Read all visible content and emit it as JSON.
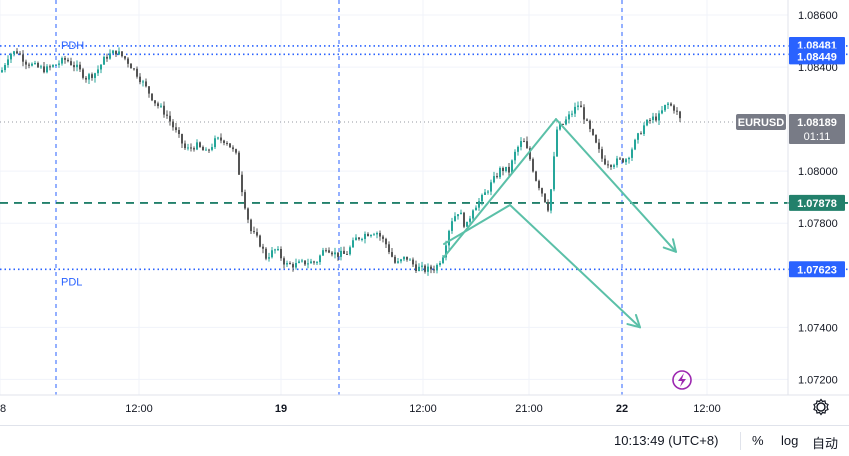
{
  "chart_data": {
    "type": "candlestick",
    "symbol": "EURUSD",
    "last_price": "1.08189",
    "countdown": "01:11",
    "price_ticks": [
      "1.08600",
      "1.08400",
      "1.08000",
      "1.07800",
      "1.07400",
      "1.07200"
    ],
    "time_ticks": [
      "8",
      "12:00",
      "19",
      "12:00",
      "21:00",
      "22",
      "12:00"
    ],
    "levels": [
      {
        "label": "PDH",
        "value": "1.08481",
        "color": "#2962ff",
        "style": "dotted"
      },
      {
        "label": "",
        "value": "1.08449",
        "color": "#2962ff",
        "style": "dotted"
      },
      {
        "label": "",
        "value": "1.07878",
        "color": "#22806b",
        "style": "dashed"
      },
      {
        "label": "PDL",
        "value": "1.07623",
        "color": "#2962ff",
        "style": "dotted"
      }
    ],
    "ylim": [
      1.0714,
      1.0865
    ],
    "path": [
      [
        0,
        1.0838
      ],
      [
        8,
        1.0845
      ],
      [
        16,
        1.0846
      ],
      [
        25,
        1.0842
      ],
      [
        35,
        1.084
      ],
      [
        45,
        1.0839
      ],
      [
        55,
        1.0841
      ],
      [
        65,
        1.0843
      ],
      [
        75,
        1.084
      ],
      [
        85,
        1.0836
      ],
      [
        95,
        1.0838
      ],
      [
        105,
        1.0844
      ],
      [
        115,
        1.0846
      ],
      [
        125,
        1.0843
      ],
      [
        135,
        1.0838
      ],
      [
        145,
        1.0832
      ],
      [
        155,
        1.0826
      ],
      [
        165,
        1.0822
      ],
      [
        175,
        1.0815
      ],
      [
        185,
        1.0808
      ],
      [
        195,
        1.081
      ],
      [
        205,
        1.0807
      ],
      [
        215,
        1.0812
      ],
      [
        225,
        1.0812
      ],
      [
        235,
        1.0806
      ],
      [
        240,
        1.0795
      ],
      [
        245,
        1.0785
      ],
      [
        250,
        1.0777
      ],
      [
        258,
        1.0773
      ],
      [
        265,
        1.0767
      ],
      [
        275,
        1.077
      ],
      [
        285,
        1.0764
      ],
      [
        295,
        1.0764
      ],
      [
        305,
        1.0765
      ],
      [
        315,
        1.0765
      ],
      [
        325,
        1.0771
      ],
      [
        335,
        1.0768
      ],
      [
        345,
        1.0768
      ],
      [
        355,
        1.0774
      ],
      [
        365,
        1.0776
      ],
      [
        375,
        1.0777
      ],
      [
        385,
        1.0772
      ],
      [
        395,
        1.0764
      ],
      [
        405,
        1.0767
      ],
      [
        415,
        1.0763
      ],
      [
        425,
        1.0762
      ],
      [
        435,
        1.0763
      ],
      [
        442,
        1.0768
      ],
      [
        450,
        1.0781
      ],
      [
        458,
        1.0785
      ],
      [
        465,
        1.0778
      ],
      [
        472,
        1.0786
      ],
      [
        480,
        1.0789
      ],
      [
        490,
        1.0795
      ],
      [
        500,
        1.0801
      ],
      [
        508,
        1.08
      ],
      [
        515,
        1.0808
      ],
      [
        522,
        1.0812
      ],
      [
        528,
        1.0806
      ],
      [
        535,
        1.0797
      ],
      [
        542,
        1.0791
      ],
      [
        548,
        1.0785
      ],
      [
        552,
        1.0801
      ],
      [
        556,
        1.0816
      ],
      [
        562,
        1.0818
      ],
      [
        570,
        1.0822
      ],
      [
        578,
        1.0826
      ],
      [
        586,
        1.0818
      ],
      [
        594,
        1.0811
      ],
      [
        602,
        1.0804
      ],
      [
        610,
        1.0803
      ],
      [
        618,
        1.0804
      ],
      [
        626,
        1.0805
      ],
      [
        634,
        1.0811
      ],
      [
        642,
        1.0817
      ],
      [
        650,
        1.082
      ],
      [
        658,
        1.0821
      ],
      [
        666,
        1.0826
      ],
      [
        674,
        1.0824
      ],
      [
        680,
        1.0819
      ]
    ],
    "drawings": [
      {
        "from": [
          444,
          1.0767
        ],
        "to": [
          556,
          1.082
        ]
      },
      {
        "from": [
          444,
          1.0772
        ],
        "to": [
          510,
          1.0787
        ]
      },
      {
        "from": [
          510,
          1.0787
        ],
        "to": [
          640,
          1.074
        ],
        "arrow": true
      },
      {
        "from": [
          556,
          1.082
        ],
        "to": [
          676,
          1.0769
        ],
        "arrow": true
      }
    ]
  },
  "toolbar": {
    "clock": "10:13:49 (UTC+8)",
    "percent_label": "%",
    "log_label": "log",
    "auto_label": "自动"
  }
}
